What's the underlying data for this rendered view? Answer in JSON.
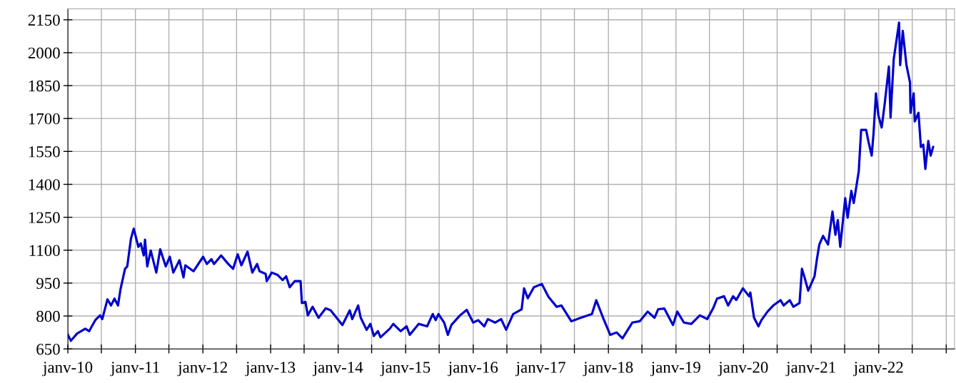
{
  "chart_data": {
    "type": "line",
    "grid": true,
    "marker": "none",
    "line_style": "solid",
    "xlim": [
      "2010-01-01",
      "2023-02-15"
    ],
    "xticks": [
      {
        "value": "2010-01-01",
        "label": "janv-10"
      },
      {
        "value": "2010-07-01",
        "label": null
      },
      {
        "value": "2011-01-01",
        "label": "janv-11"
      },
      {
        "value": "2011-07-01",
        "label": null
      },
      {
        "value": "2012-01-01",
        "label": "janv-12"
      },
      {
        "value": "2012-07-01",
        "label": null
      },
      {
        "value": "2013-01-01",
        "label": "janv-13"
      },
      {
        "value": "2013-07-01",
        "label": null
      },
      {
        "value": "2014-01-01",
        "label": "janv-14"
      },
      {
        "value": "2014-07-01",
        "label": null
      },
      {
        "value": "2015-01-01",
        "label": "janv-15"
      },
      {
        "value": "2015-07-01",
        "label": null
      },
      {
        "value": "2016-01-01",
        "label": "janv-16"
      },
      {
        "value": "2016-07-01",
        "label": null
      },
      {
        "value": "2017-01-01",
        "label": "janv-17"
      },
      {
        "value": "2017-07-01",
        "label": null
      },
      {
        "value": "2018-01-01",
        "label": "janv-18"
      },
      {
        "value": "2018-07-01",
        "label": null
      },
      {
        "value": "2019-01-01",
        "label": "janv-19"
      },
      {
        "value": "2019-07-01",
        "label": null
      },
      {
        "value": "2020-01-01",
        "label": "janv-20"
      },
      {
        "value": "2020-07-01",
        "label": null
      },
      {
        "value": "2021-01-01",
        "label": "janv-21"
      },
      {
        "value": "2021-07-01",
        "label": null
      },
      {
        "value": "2022-01-01",
        "label": "janv-22"
      },
      {
        "value": "2022-07-01",
        "label": null
      },
      {
        "value": "2023-01-01",
        "label": null
      }
    ],
    "ylim": [
      650,
      2200
    ],
    "yticks": [
      650,
      800,
      950,
      1100,
      1250,
      1400,
      1550,
      1700,
      1850,
      2000,
      2150
    ],
    "series": [
      {
        "color": "#0000cc",
        "x": [
          "2010-01-01",
          "2010-01-17",
          "2010-02-20",
          "2010-04-05",
          "2010-04-26",
          "2010-05-29",
          "2010-06-24",
          "2010-07-06",
          "2010-08-03",
          "2010-08-22",
          "2010-09-10",
          "2010-09-29",
          "2010-10-12",
          "2010-11-06",
          "2010-11-18",
          "2010-12-08",
          "2010-12-23",
          "2011-01-02",
          "2011-01-17",
          "2011-01-30",
          "2011-02-15",
          "2011-02-22",
          "2011-03-06",
          "2011-03-25",
          "2011-04-24",
          "2011-05-15",
          "2011-06-14",
          "2011-07-06",
          "2011-07-25",
          "2011-08-27",
          "2011-09-18",
          "2011-09-28",
          "2011-11-11",
          "2012-01-02",
          "2012-01-22",
          "2012-02-16",
          "2012-03-01",
          "2012-04-08",
          "2012-05-17",
          "2012-06-12",
          "2012-07-07",
          "2012-07-27",
          "2012-08-29",
          "2012-09-24",
          "2012-10-20",
          "2012-11-02",
          "2012-12-05",
          "2012-12-11",
          "2013-01-07",
          "2013-02-08",
          "2013-03-07",
          "2013-03-26",
          "2013-04-14",
          "2013-05-11",
          "2013-06-12",
          "2013-06-19",
          "2013-07-08",
          "2013-07-21",
          "2013-08-16",
          "2013-09-17",
          "2013-10-26",
          "2013-11-21",
          "2014-01-24",
          "2014-03-05",
          "2014-03-18",
          "2014-04-19",
          "2014-05-03",
          "2014-06-04",
          "2014-06-24",
          "2014-07-13",
          "2014-08-04",
          "2014-08-18",
          "2014-10-07",
          "2014-10-26",
          "2014-12-05",
          "2015-01-06",
          "2015-01-23",
          "2015-03-12",
          "2015-04-27",
          "2015-05-27",
          "2015-06-12",
          "2015-06-27",
          "2015-07-28",
          "2015-08-17",
          "2015-09-05",
          "2015-10-22",
          "2015-11-27",
          "2016-01-01",
          "2016-01-28",
          "2016-03-01",
          "2016-03-20",
          "2016-04-28",
          "2016-05-31",
          "2016-06-27",
          "2016-08-04",
          "2016-09-19",
          "2016-10-02",
          "2016-10-22",
          "2016-11-24",
          "2017-01-06",
          "2017-02-11",
          "2017-03-27",
          "2017-04-22",
          "2017-06-14",
          "2017-08-05",
          "2017-10-04",
          "2017-10-27",
          "2017-12-03",
          "2018-01-11",
          "2018-02-14",
          "2018-03-18",
          "2018-05-10",
          "2018-06-19",
          "2018-08-01",
          "2018-09-07",
          "2018-09-27",
          "2018-10-30",
          "2018-12-16",
          "2019-01-08",
          "2019-02-13",
          "2019-03-25",
          "2019-05-10",
          "2019-06-19",
          "2019-07-22",
          "2019-08-11",
          "2019-09-18",
          "2019-10-10",
          "2019-11-06",
          "2019-11-23",
          "2019-12-29",
          "2020-01-31",
          "2020-02-07",
          "2020-02-27",
          "2020-03-22",
          "2020-04-07",
          "2020-05-10",
          "2020-06-10",
          "2020-07-20",
          "2020-08-05",
          "2020-09-07",
          "2020-09-27",
          "2020-10-30",
          "2020-11-12",
          "2020-11-26",
          "2020-12-16",
          "2021-01-19",
          "2021-02-01",
          "2021-02-14",
          "2021-03-06",
          "2021-04-02",
          "2021-04-26",
          "2021-05-12",
          "2021-05-25",
          "2021-06-07",
          "2021-07-04",
          "2021-07-17",
          "2021-08-06",
          "2021-08-19",
          "2021-09-15",
          "2021-09-28",
          "2021-10-25",
          "2021-11-07",
          "2021-11-24",
          "2021-12-04",
          "2021-12-17",
          "2021-12-30",
          "2022-01-17",
          "2022-02-02",
          "2022-02-25",
          "2022-03-06",
          "2022-03-23",
          "2022-04-21",
          "2022-04-27",
          "2022-05-11",
          "2022-05-31",
          "2022-06-19",
          "2022-06-22",
          "2022-07-09",
          "2022-07-15",
          "2022-08-04",
          "2022-08-17",
          "2022-08-30",
          "2022-09-10",
          "2022-09-26",
          "2022-10-09",
          "2022-10-22"
        ],
        "values": [
          715,
          687,
          720,
          742,
          731,
          781,
          803,
          786,
          876,
          848,
          879,
          848,
          920,
          1015,
          1026,
          1153,
          1198,
          1165,
          1115,
          1131,
          1076,
          1148,
          1026,
          1098,
          998,
          1104,
          1026,
          1070,
          998,
          1054,
          976,
          1031,
          1004,
          1070,
          1037,
          1059,
          1037,
          1076,
          1037,
          1015,
          1081,
          1031,
          1093,
          998,
          1037,
          1004,
          992,
          959,
          998,
          987,
          964,
          981,
          931,
          959,
          959,
          859,
          864,
          803,
          842,
          792,
          835,
          826,
          759,
          826,
          786,
          848,
          792,
          737,
          764,
          709,
          731,
          703,
          742,
          764,
          731,
          753,
          714,
          764,
          753,
          809,
          781,
          809,
          770,
          714,
          759,
          803,
          828,
          770,
          781,
          753,
          786,
          770,
          786,
          737,
          809,
          831,
          926,
          881,
          931,
          946,
          887,
          842,
          848,
          776,
          792,
          809,
          872,
          792,
          714,
          725,
          698,
          770,
          776,
          820,
          792,
          831,
          834,
          759,
          820,
          770,
          764,
          803,
          786,
          837,
          879,
          890,
          848,
          890,
          873,
          926,
          890,
          907,
          792,
          753,
          781,
          820,
          848,
          872,
          848,
          872,
          842,
          859,
          1015,
          976,
          915,
          981,
          1059,
          1126,
          1165,
          1126,
          1276,
          1170,
          1237,
          1115,
          1337,
          1248,
          1370,
          1315,
          1459,
          1648,
          1648,
          1593,
          1531,
          1632,
          1815,
          1715,
          1659,
          1765,
          1937,
          1704,
          1970,
          2137,
          1943,
          2099,
          1943,
          1865,
          1726,
          1815,
          1687,
          1726,
          1570,
          1581,
          1470,
          1598,
          1531,
          1570
        ]
      }
    ]
  }
}
